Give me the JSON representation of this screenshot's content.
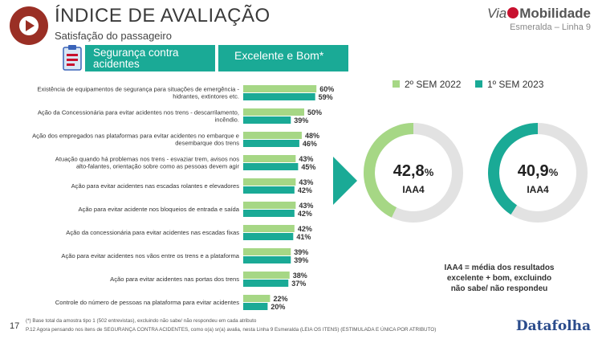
{
  "header": {
    "title": "ÍNDICE DE AVALIAÇÃO",
    "subtitle": "Satisfação do passageiro",
    "brand_via": "Via",
    "brand_mobilidade": "Mobilidade",
    "line_name": "Esmeralda – Linha 9",
    "section_label": "Segurança contra acidentes",
    "metric_label": "Excelente e Bom*"
  },
  "colors": {
    "series_2022": "#a6d785",
    "series_2023": "#1aaa96",
    "brand_red": "#9a2f25"
  },
  "chart_data": [
    {
      "type": "bar",
      "orientation": "horizontal",
      "categories": [
        "Existência de equipamentos de segurança para situações de emergência - hidrantes, extintores etc.",
        "Ação da Concessionária para evitar acidentes nos trens - descarrilamento, incêndio.",
        "Ação dos empregados nas plataformas para evitar acidentes no embarque e desembarque dos trens",
        "Atuação quando há problemas nos trens - esvaziar trem, avisos nos alto-falantes, orientação sobre como as pessoas devem agir",
        "Ação para evitar acidentes nas escadas rolantes e elevadores",
        "Ação para evitar acidente nos bloqueios de entrada e saída",
        "Ação da concessionária para evitar acidentes nas escadas fixas",
        "Ação para evitar acidentes nos vãos entre os trens e a plataforma",
        "Ação para evitar acidentes nas portas dos trens",
        "Controle do número de pessoas na plataforma para evitar acidentes"
      ],
      "series": [
        {
          "name": "2º SEM 2022",
          "values": [
            60,
            50,
            48,
            43,
            43,
            43,
            42,
            39,
            38,
            22
          ],
          "labels": [
            "60%",
            "50%",
            "48%",
            "43%",
            "43%",
            "43%",
            "42%",
            "39%",
            "38%",
            "22%"
          ]
        },
        {
          "name": "1º SEM 2023",
          "values": [
            59,
            39,
            46,
            45,
            42,
            42,
            41,
            39,
            37,
            20
          ],
          "labels": [
            "59%",
            "39%",
            "46%",
            "45%",
            "42%",
            "42%",
            "41%",
            "39%",
            "37%",
            "20%"
          ]
        }
      ]
    },
    {
      "type": "pie",
      "variant": "donut",
      "series": [
        {
          "name": "2º SEM 2022",
          "value": 42.8,
          "value_text": "42,8",
          "unit": "%",
          "label": "IAA4"
        },
        {
          "name": "1º SEM 2023",
          "value": 40.9,
          "value_text": "40,9",
          "unit": "%",
          "label": "IAA4"
        }
      ],
      "legend_position": "top"
    }
  ],
  "footnote": "IAA4 = média dos resultados excelente + bom, excluindo não sabe/ não respondeu",
  "footer": {
    "page_number": "17",
    "base_note": "(*) Base total da amostra tipo 1 (502 entrevistas), excluindo não sabe/ não respondeu em cada atributo",
    "question_note": "P.12 Agora pensando nos itens de SEGURANÇA CONTRA ACIDENTES, como o(a) sr(a) avalia, nesta Linha 9 Esmeralda (LEIA OS ITENS) (ESTIMULADA E ÚNICA POR ATRIBUTO)",
    "company": "Datafolha"
  }
}
